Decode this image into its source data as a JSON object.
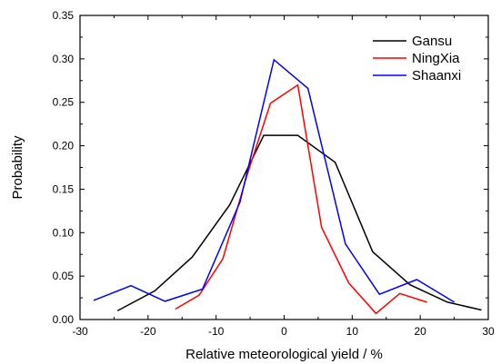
{
  "chart_data": {
    "type": "line",
    "title": "",
    "xlabel": "Relative meteorological yield / %",
    "ylabel": "Probability",
    "xlim": [
      -30,
      30
    ],
    "ylim": [
      0,
      0.35
    ],
    "xticks": [
      -30,
      -20,
      -10,
      0,
      10,
      20,
      30
    ],
    "xtick_labels": [
      "-30",
      "-20",
      "-10",
      "0",
      "10",
      "20",
      "30"
    ],
    "yticks": [
      0,
      0.05,
      0.1,
      0.15,
      0.2,
      0.25,
      0.3,
      0.35
    ],
    "ytick_labels": [
      "0.00",
      "0.05",
      "0.10",
      "0.15",
      "0.20",
      "0.25",
      "0.30",
      "0.35"
    ],
    "grid": false,
    "legend_position": "top-right",
    "series": [
      {
        "name": "Gansu",
        "color": "#000000",
        "x": [
          -24.5,
          -19,
          -13.5,
          -8,
          -3,
          2,
          7.5,
          13,
          18.5,
          24,
          29
        ],
        "y": [
          0.01,
          0.033,
          0.072,
          0.132,
          0.212,
          0.212,
          0.181,
          0.078,
          0.04,
          0.02,
          0.011
        ]
      },
      {
        "name": "NingXia",
        "color": "#ff0000",
        "x": [
          -16,
          -12.5,
          -9,
          -5.5,
          -2,
          2,
          5.5,
          9.5,
          13.5,
          17,
          21
        ],
        "y": [
          0.012,
          0.028,
          0.07,
          0.165,
          0.249,
          0.27,
          0.106,
          0.042,
          0.007,
          0.03,
          0.02
        ]
      },
      {
        "name": "Shaanxi",
        "color": "#0000ff",
        "x": [
          -28,
          -22.5,
          -17.5,
          -12,
          -6.5,
          -1.5,
          3.5,
          9,
          14,
          19.5,
          25
        ],
        "y": [
          0.022,
          0.039,
          0.021,
          0.035,
          0.135,
          0.299,
          0.266,
          0.087,
          0.029,
          0.046,
          0.02
        ]
      }
    ]
  }
}
